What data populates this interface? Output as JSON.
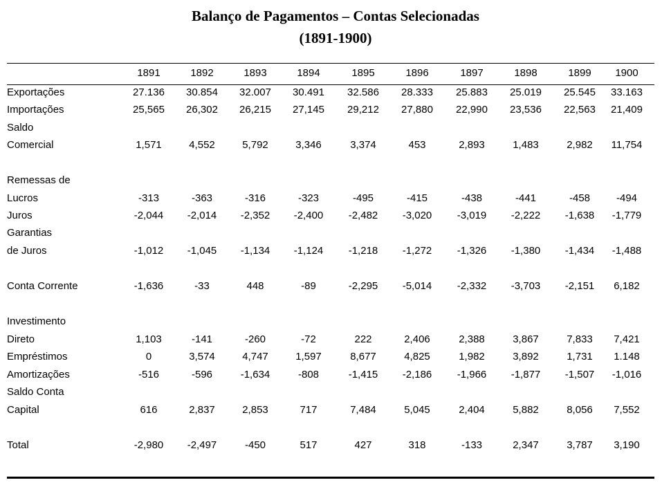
{
  "title_line1": "Balanço de Pagamentos – Contas Selecionadas",
  "title_line2": "(1891-1900)",
  "years": [
    "1891",
    "1892",
    "1893",
    "1894",
    "1895",
    "1896",
    "1897",
    "1898",
    "1899",
    "1900"
  ],
  "rows": [
    {
      "label": [
        "Exportações"
      ],
      "values": [
        "27.136",
        "30.854",
        "32.007",
        "30.491",
        "32.586",
        "28.333",
        "25.883",
        "25.019",
        "25.545",
        "33.163"
      ]
    },
    {
      "label": [
        "Importações"
      ],
      "values": [
        "25,565",
        "26,302",
        "26,215",
        "27,145",
        "29,212",
        "27,880",
        "22,990",
        "23,536",
        "22,563",
        "21,409"
      ]
    },
    {
      "label": [
        "Saldo",
        "Comercial"
      ],
      "values": [
        "1,571",
        "4,552",
        "5,792",
        "3,346",
        "3,374",
        "453",
        "2,893",
        "1,483",
        "2,982",
        "11,754"
      ]
    },
    {
      "label": [
        "Remessas de",
        "Lucros"
      ],
      "values": [
        "-313",
        "-363",
        "-316",
        "-323",
        "-495",
        "-415",
        "-438",
        "-441",
        "-458",
        "-494"
      ]
    },
    {
      "label": [
        "Juros"
      ],
      "values": [
        "-2,044",
        "-2,014",
        "-2,352",
        "-2,400",
        "-2,482",
        "-3,020",
        "-3,019",
        "-2,222",
        "-1,638",
        "-1,779"
      ]
    },
    {
      "label": [
        "Garantias",
        "de Juros"
      ],
      "values": [
        "-1,012",
        "-1,045",
        "-1,134",
        "-1,124",
        "-1,218",
        "-1,272",
        "-1,326",
        "-1,380",
        "-1,434",
        "-1,488"
      ]
    },
    {
      "label": [
        "Conta Corrente"
      ],
      "values": [
        "-1,636",
        "-33",
        "448",
        "-89",
        "-2,295",
        "-5,014",
        "-2,332",
        "-3,703",
        "-2,151",
        "6,182"
      ]
    },
    {
      "label": [
        "Investimento",
        "Direto"
      ],
      "values": [
        "1,103",
        "-141",
        "-260",
        "-72",
        "222",
        "2,406",
        "2,388",
        "3,867",
        "7,833",
        "7,421"
      ]
    },
    {
      "label": [
        "Empréstimos"
      ],
      "values": [
        "0",
        "3,574",
        "4,747",
        "1,597",
        "8,677",
        "4,825",
        "1,982",
        "3,892",
        "1,731",
        "1.148"
      ]
    },
    {
      "label": [
        "Amortizações"
      ],
      "values": [
        "-516",
        "-596",
        "-1,634",
        "-808",
        "-1,415",
        "-2,186",
        "-1,966",
        "-1,877",
        "-1,507",
        "-1,016"
      ]
    },
    {
      "label": [
        "Saldo Conta",
        "Capital"
      ],
      "values": [
        "616",
        "2,837",
        "2,853",
        "717",
        "7,484",
        "5,045",
        "2,404",
        "5,882",
        "8,056",
        "7,552"
      ]
    },
    {
      "label": [
        "Total"
      ],
      "values": [
        "-2,980",
        "-2,497",
        "-450",
        "517",
        "427",
        "318",
        "-133",
        "2,347",
        "3,787",
        "3,190"
      ]
    }
  ]
}
